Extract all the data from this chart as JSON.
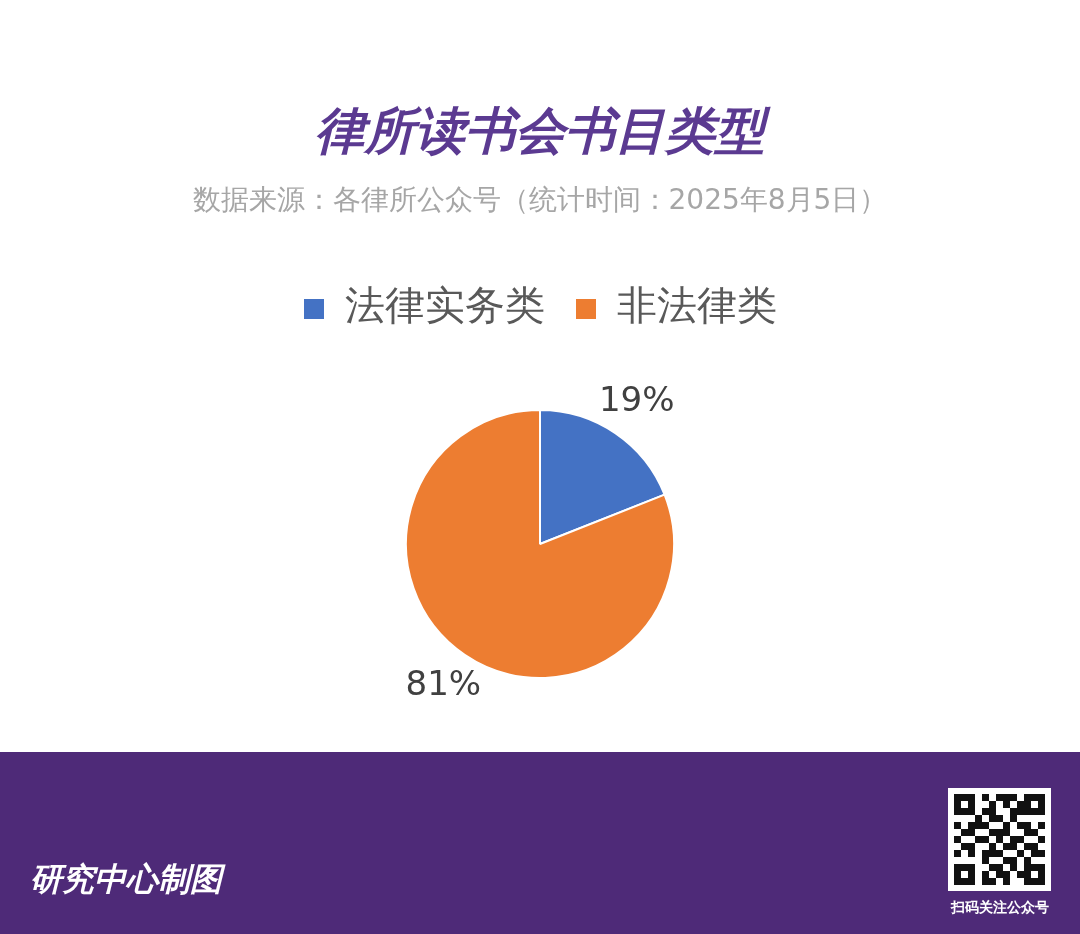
{
  "chart_data": {
    "type": "pie",
    "title": "律所读书会书目类型",
    "subtitle": "数据来源：各律所公众号（统计时间：2025年8月5日）",
    "categories": [
      "法律实务类",
      "非法律类"
    ],
    "values": [
      19,
      81
    ],
    "colors": [
      "#4472c4",
      "#ed7d31"
    ],
    "value_labels": [
      "19%",
      "81%"
    ],
    "legend": "top",
    "annotations": [
      "研究中心制图",
      "扫码关注公众号"
    ]
  }
}
